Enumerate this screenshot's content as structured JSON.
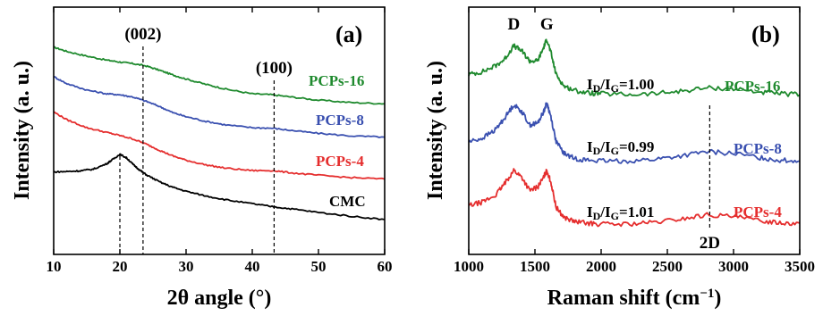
{
  "chart_data": [
    {
      "type": "line",
      "panel_label": "(a)",
      "xlabel": "2θ angle (°)",
      "ylabel": "Intensity (a. u.)",
      "xlim": [
        10,
        60
      ],
      "xticks": [
        10,
        20,
        30,
        40,
        50,
        60
      ],
      "y_ticks_shown": false,
      "annotations": [
        {
          "text": "(002)",
          "x": 23.5
        },
        {
          "text": "(100)",
          "x": 43.3
        }
      ],
      "guide_lines_x": [
        20.0,
        23.5,
        43.3
      ],
      "series": [
        {
          "name": "PCPs-16",
          "color": "#1f8a2e",
          "x": [
            10,
            12,
            15,
            18,
            20,
            22,
            24,
            26,
            28,
            30,
            33,
            36,
            40,
            43,
            46,
            50,
            55,
            60
          ],
          "y": [
            8.8,
            8.62,
            8.42,
            8.25,
            8.17,
            8.1,
            8.0,
            7.82,
            7.62,
            7.45,
            7.22,
            7.02,
            6.82,
            6.78,
            6.68,
            6.55,
            6.45,
            6.4
          ]
        },
        {
          "name": "PCPs-8",
          "color": "#3a50b0",
          "x": [
            10,
            12,
            15,
            18,
            20,
            22,
            24,
            26,
            28,
            30,
            33,
            36,
            40,
            43,
            46,
            50,
            55,
            60
          ],
          "y": [
            7.55,
            7.25,
            6.98,
            6.82,
            6.78,
            6.68,
            6.5,
            6.28,
            6.02,
            5.85,
            5.65,
            5.5,
            5.38,
            5.36,
            5.26,
            5.14,
            5.03,
            4.98
          ]
        },
        {
          "name": "PCPs-4",
          "color": "#e52e2e",
          "x": [
            10,
            12,
            15,
            18,
            20,
            22,
            24,
            26,
            28,
            30,
            33,
            36,
            40,
            43,
            46,
            50,
            55,
            60
          ],
          "y": [
            6.05,
            5.72,
            5.38,
            5.18,
            5.05,
            4.9,
            4.68,
            4.42,
            4.18,
            4.0,
            3.8,
            3.66,
            3.56,
            3.56,
            3.46,
            3.36,
            3.26,
            3.2
          ]
        },
        {
          "name": "CMC",
          "color": "#000000",
          "x": [
            10,
            12,
            14,
            16,
            18,
            19,
            20,
            21,
            22,
            23,
            24,
            26,
            28,
            30,
            33,
            36,
            40,
            43,
            46,
            50,
            55,
            60
          ],
          "y": [
            3.5,
            3.52,
            3.55,
            3.62,
            3.85,
            4.05,
            4.25,
            4.1,
            3.82,
            3.58,
            3.38,
            3.08,
            2.85,
            2.68,
            2.48,
            2.32,
            2.15,
            2.03,
            1.93,
            1.78,
            1.62,
            1.48
          ]
        }
      ]
    },
    {
      "type": "line",
      "panel_label": "(b)",
      "xlabel": "Raman shift (cm",
      "xlabel_sup": "−1",
      "xlabel_end": ")",
      "ylabel": "Intensity (a. u.)",
      "xlim": [
        1000,
        3500
      ],
      "xticks": [
        1000,
        1500,
        2000,
        2500,
        3000,
        3500
      ],
      "y_ticks_shown": false,
      "peak_labels": [
        {
          "text": "D",
          "x": 1340
        },
        {
          "text": "G",
          "x": 1590
        },
        {
          "text": "2D",
          "x": 2820
        }
      ],
      "guide_lines_x": [
        2820
      ],
      "ratios": [
        {
          "series": "PCPs-16",
          "text": "=1.00"
        },
        {
          "series": "PCPs-8",
          "text": "=0.99"
        },
        {
          "series": "PCPs-4",
          "text": "=1.01"
        }
      ],
      "ratio_prefix": "I",
      "ratio_sub_d": "D",
      "ratio_sub_g": "G",
      "series": [
        {
          "name": "PCPs-16",
          "color": "#1f8a2e",
          "x": [
            1000,
            1100,
            1200,
            1270,
            1340,
            1400,
            1460,
            1520,
            1560,
            1590,
            1620,
            1660,
            1720,
            1800,
            1900,
            2000,
            2200,
            2400,
            2600,
            2800,
            3000,
            3200,
            3350,
            3500
          ],
          "y": [
            9.2,
            9.35,
            9.7,
            10.1,
            10.9,
            10.6,
            10.0,
            10.0,
            10.7,
            11.3,
            10.5,
            9.2,
            8.5,
            8.25,
            8.1,
            8.05,
            8.0,
            8.05,
            8.2,
            8.4,
            8.35,
            8.15,
            8.05,
            8.0
          ]
        },
        {
          "name": "PCPs-8",
          "color": "#3a50b0",
          "x": [
            1000,
            1100,
            1200,
            1270,
            1340,
            1400,
            1460,
            1520,
            1560,
            1590,
            1620,
            1660,
            1720,
            1800,
            1900,
            2000,
            2200,
            2400,
            2600,
            2800,
            3000,
            3200,
            3350,
            3500
          ],
          "y": [
            5.2,
            5.4,
            5.9,
            6.6,
            7.4,
            7.0,
            6.2,
            6.3,
            6.9,
            7.5,
            6.7,
            5.2,
            4.5,
            4.2,
            4.1,
            4.05,
            4.05,
            4.15,
            4.35,
            4.6,
            4.5,
            4.25,
            4.1,
            4.05
          ]
        },
        {
          "name": "PCPs-4",
          "color": "#e52e2e",
          "x": [
            1000,
            1100,
            1200,
            1270,
            1340,
            1400,
            1460,
            1520,
            1560,
            1590,
            1620,
            1660,
            1720,
            1800,
            1900,
            2000,
            2200,
            2400,
            2600,
            2800,
            3000,
            3200,
            3350,
            3500
          ],
          "y": [
            1.4,
            1.6,
            2.0,
            2.7,
            3.5,
            3.1,
            2.3,
            2.5,
            3.0,
            3.5,
            2.8,
            1.3,
            0.7,
            0.45,
            0.35,
            0.3,
            0.3,
            0.4,
            0.6,
            0.85,
            0.75,
            0.5,
            0.4,
            0.35
          ]
        }
      ]
    }
  ]
}
